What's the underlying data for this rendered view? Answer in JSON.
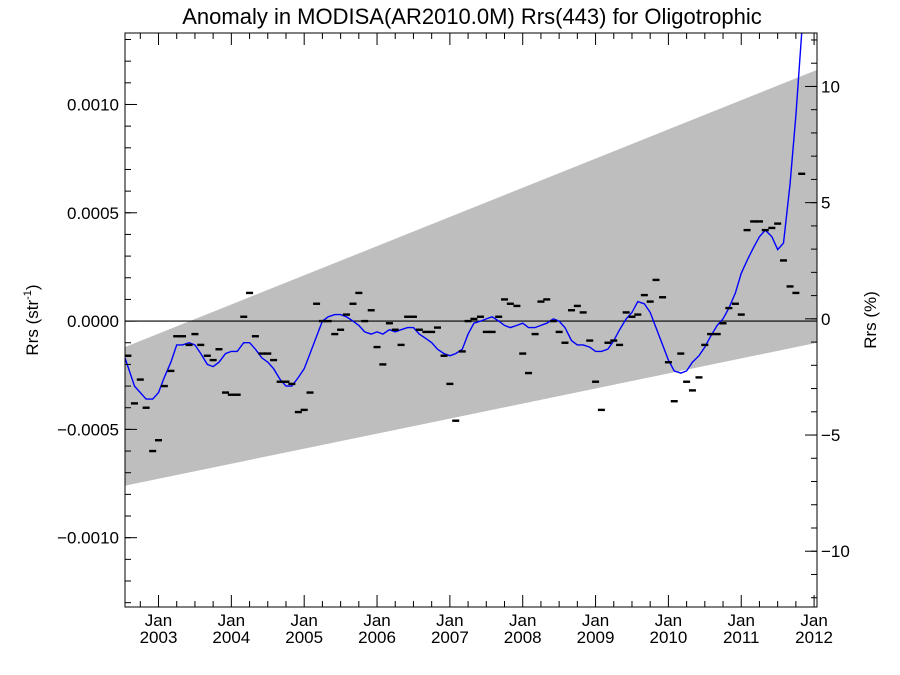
{
  "chart_data": {
    "type": "line",
    "title": "Anomaly in MODISA(AR2010.0M) Rrs(443) for Oligotrophic",
    "ylabel": "Rrs (str",
    "ylabel_sup": "-1",
    "ylabel_close": ")",
    "y2label": "Rrs (%)",
    "ylim": [
      -0.00132,
      0.00133
    ],
    "y2lim": [
      -12.4,
      12.3
    ],
    "xlim": [
      2002.54,
      2012.04
    ],
    "yticks": [
      {
        "value": 0.001,
        "label": "0.0010"
      },
      {
        "value": 0.0005,
        "label": "0.0005"
      },
      {
        "value": 0.0,
        "label": "0.0000"
      },
      {
        "value": -0.0005,
        "label": "−0.0005"
      },
      {
        "value": -0.001,
        "label": "−0.0010"
      }
    ],
    "y2ticks": [
      {
        "value": 10,
        "label": "10"
      },
      {
        "value": 5,
        "label": "5"
      },
      {
        "value": 0,
        "label": "0"
      },
      {
        "value": -5,
        "label": "−5"
      },
      {
        "value": -10,
        "label": "−10"
      }
    ],
    "xticks": [
      {
        "value": 2003.0,
        "month": "Jan",
        "year": "2003"
      },
      {
        "value": 2004.0,
        "month": "Jan",
        "year": "2004"
      },
      {
        "value": 2005.0,
        "month": "Jan",
        "year": "2005"
      },
      {
        "value": 2006.0,
        "month": "Jan",
        "year": "2006"
      },
      {
        "value": 2007.0,
        "month": "Jan",
        "year": "2007"
      },
      {
        "value": 2008.0,
        "month": "Jan",
        "year": "2008"
      },
      {
        "value": 2009.0,
        "month": "Jan",
        "year": "2009"
      },
      {
        "value": 2010.0,
        "month": "Jan",
        "year": "2010"
      },
      {
        "value": 2011.0,
        "month": "Jan",
        "year": "2011"
      },
      {
        "value": 2012.0,
        "month": "Jan",
        "year": "2012"
      }
    ],
    "grey_band": {
      "upper": [
        [
          2002.54,
          -0.00012
        ],
        [
          2012.04,
          0.00116
        ]
      ],
      "lower": [
        [
          2002.54,
          -0.00076
        ],
        [
          2012.04,
          -0.0001
        ]
      ],
      "color": "#bebebe"
    },
    "zero_line": 0,
    "series": [
      {
        "kind": "markers",
        "color": "#000000",
        "points": [
          [
            2002.58,
            -0.00016
          ],
          [
            2002.67,
            -0.00038
          ],
          [
            2002.75,
            -0.00027
          ],
          [
            2002.83,
            -0.0004
          ],
          [
            2002.92,
            -0.0006
          ],
          [
            2003.0,
            -0.00055
          ],
          [
            2003.08,
            -0.0003
          ],
          [
            2003.17,
            -0.00023
          ],
          [
            2003.25,
            -7e-05
          ],
          [
            2003.33,
            -7e-05
          ],
          [
            2003.42,
            -0.00011
          ],
          [
            2003.5,
            -6e-05
          ],
          [
            2003.58,
            -0.00011
          ],
          [
            2003.67,
            -0.00016
          ],
          [
            2003.75,
            -0.00018
          ],
          [
            2003.83,
            -0.00013
          ],
          [
            2003.92,
            -0.00033
          ],
          [
            2004.0,
            -0.00034
          ],
          [
            2004.08,
            -0.00034
          ],
          [
            2004.17,
            2e-05
          ],
          [
            2004.25,
            0.00013
          ],
          [
            2004.33,
            -7e-05
          ],
          [
            2004.42,
            -0.00015
          ],
          [
            2004.5,
            -0.00015
          ],
          [
            2004.58,
            -0.00018
          ],
          [
            2004.67,
            -0.00028
          ],
          [
            2004.75,
            -0.00028
          ],
          [
            2004.83,
            -0.00029
          ],
          [
            2004.92,
            -0.00042
          ],
          [
            2005.0,
            -0.00041
          ],
          [
            2005.08,
            -0.00033
          ],
          [
            2005.17,
            8e-05
          ],
          [
            2005.25,
            0.0
          ],
          [
            2005.33,
            0.0
          ],
          [
            2005.42,
            -6e-05
          ],
          [
            2005.5,
            -4e-05
          ],
          [
            2005.58,
            3e-05
          ],
          [
            2005.67,
            8e-05
          ],
          [
            2005.75,
            0.00013
          ],
          [
            2005.83,
            0.0
          ],
          [
            2005.92,
            5e-05
          ],
          [
            2006.0,
            -0.00012
          ],
          [
            2006.08,
            -0.0002
          ],
          [
            2006.17,
            -1e-05
          ],
          [
            2006.25,
            -4e-05
          ],
          [
            2006.33,
            -0.00011
          ],
          [
            2006.42,
            2e-05
          ],
          [
            2006.5,
            2e-05
          ],
          [
            2006.58,
            -4e-05
          ],
          [
            2006.67,
            -5e-05
          ],
          [
            2006.75,
            -5e-05
          ],
          [
            2006.83,
            -3e-05
          ],
          [
            2006.92,
            -0.00016
          ],
          [
            2007.0,
            -0.00029
          ],
          [
            2007.08,
            -0.00046
          ],
          [
            2007.17,
            -0.00014
          ],
          [
            2007.25,
            0.0
          ],
          [
            2007.33,
            1e-05
          ],
          [
            2007.42,
            2e-05
          ],
          [
            2007.5,
            -5e-05
          ],
          [
            2007.58,
            -5e-05
          ],
          [
            2007.67,
            2e-05
          ],
          [
            2007.75,
            0.0001
          ],
          [
            2007.83,
            8e-05
          ],
          [
            2007.92,
            7e-05
          ],
          [
            2008.0,
            -0.00015
          ],
          [
            2008.08,
            -0.00024
          ],
          [
            2008.17,
            -6e-05
          ],
          [
            2008.25,
            9e-05
          ],
          [
            2008.33,
            0.0001
          ],
          [
            2008.42,
            0.0
          ],
          [
            2008.5,
            -5e-05
          ],
          [
            2008.58,
            -0.0001
          ],
          [
            2008.67,
            5e-05
          ],
          [
            2008.75,
            7e-05
          ],
          [
            2008.83,
            4e-05
          ],
          [
            2008.92,
            -9e-05
          ],
          [
            2009.0,
            -0.00028
          ],
          [
            2009.08,
            -0.00041
          ],
          [
            2009.17,
            -0.0001
          ],
          [
            2009.25,
            -9e-05
          ],
          [
            2009.33,
            -0.00011
          ],
          [
            2009.42,
            4e-05
          ],
          [
            2009.5,
            2e-05
          ],
          [
            2009.58,
            3e-05
          ],
          [
            2009.67,
            0.00012
          ],
          [
            2009.75,
            9e-05
          ],
          [
            2009.83,
            0.00019
          ],
          [
            2009.92,
            0.00011
          ],
          [
            2010.0,
            -0.00019
          ],
          [
            2010.08,
            -0.00037
          ],
          [
            2010.17,
            -0.00015
          ],
          [
            2010.25,
            -0.00028
          ],
          [
            2010.33,
            -0.00032
          ],
          [
            2010.42,
            -0.00026
          ],
          [
            2010.5,
            -0.00011
          ],
          [
            2010.58,
            -6e-05
          ],
          [
            2010.67,
            -6e-05
          ],
          [
            2010.75,
            -1e-05
          ],
          [
            2010.83,
            6e-05
          ],
          [
            2010.92,
            8e-05
          ],
          [
            2011.0,
            3e-05
          ],
          [
            2011.08,
            0.00042
          ],
          [
            2011.17,
            0.00046
          ],
          [
            2011.25,
            0.00046
          ],
          [
            2011.33,
            0.00042
          ],
          [
            2011.42,
            0.00043
          ],
          [
            2011.5,
            0.00045
          ],
          [
            2011.58,
            0.00028
          ],
          [
            2011.67,
            0.00016
          ],
          [
            2011.75,
            0.00013
          ],
          [
            2011.83,
            0.00068
          ]
        ]
      },
      {
        "kind": "line",
        "color": "#0000ff",
        "points": [
          [
            2002.54,
            -0.00017
          ],
          [
            2002.67,
            -0.0003
          ],
          [
            2002.83,
            -0.00036
          ],
          [
            2002.92,
            -0.00036
          ],
          [
            2003.0,
            -0.00033
          ],
          [
            2003.08,
            -0.00026
          ],
          [
            2003.17,
            -0.00019
          ],
          [
            2003.25,
            -0.00011
          ],
          [
            2003.33,
            -0.00011
          ],
          [
            2003.42,
            -0.0001
          ],
          [
            2003.5,
            -0.00011
          ],
          [
            2003.58,
            -0.00015
          ],
          [
            2003.67,
            -0.0002
          ],
          [
            2003.75,
            -0.00021
          ],
          [
            2003.83,
            -0.00019
          ],
          [
            2003.92,
            -0.00015
          ],
          [
            2004.0,
            -0.00014
          ],
          [
            2004.08,
            -0.00014
          ],
          [
            2004.17,
            -0.0001
          ],
          [
            2004.25,
            -0.0001
          ],
          [
            2004.33,
            -0.00013
          ],
          [
            2004.42,
            -0.00017
          ],
          [
            2004.5,
            -0.00019
          ],
          [
            2004.58,
            -0.00022
          ],
          [
            2004.67,
            -0.00027
          ],
          [
            2004.75,
            -0.0003
          ],
          [
            2004.83,
            -0.0003
          ],
          [
            2004.92,
            -0.00026
          ],
          [
            2005.0,
            -0.00022
          ],
          [
            2005.08,
            -0.00015
          ],
          [
            2005.17,
            -7e-05
          ],
          [
            2005.25,
            0.0
          ],
          [
            2005.33,
            2e-05
          ],
          [
            2005.42,
            3e-05
          ],
          [
            2005.5,
            3e-05
          ],
          [
            2005.58,
            2e-05
          ],
          [
            2005.67,
            0.0
          ],
          [
            2005.75,
            -2e-05
          ],
          [
            2005.83,
            -5e-05
          ],
          [
            2005.92,
            -6e-05
          ],
          [
            2006.0,
            -5e-05
          ],
          [
            2006.08,
            -6e-05
          ],
          [
            2006.17,
            -4e-05
          ],
          [
            2006.25,
            -5e-05
          ],
          [
            2006.33,
            -4e-05
          ],
          [
            2006.42,
            -3e-05
          ],
          [
            2006.5,
            -3e-05
          ],
          [
            2006.58,
            -6e-05
          ],
          [
            2006.67,
            -8e-05
          ],
          [
            2006.75,
            -0.0001
          ],
          [
            2006.83,
            -0.00013
          ],
          [
            2006.92,
            -0.00015
          ],
          [
            2007.0,
            -0.00016
          ],
          [
            2007.08,
            -0.00015
          ],
          [
            2007.17,
            -0.00013
          ],
          [
            2007.25,
            -6e-05
          ],
          [
            2007.33,
            -1e-05
          ],
          [
            2007.42,
            0.0
          ],
          [
            2007.5,
            1e-05
          ],
          [
            2007.58,
            2e-05
          ],
          [
            2007.67,
            0.0
          ],
          [
            2007.75,
            -2e-05
          ],
          [
            2007.83,
            -3e-05
          ],
          [
            2007.92,
            -2e-05
          ],
          [
            2008.0,
            -1e-05
          ],
          [
            2008.08,
            -3e-05
          ],
          [
            2008.17,
            -3e-05
          ],
          [
            2008.25,
            -2e-05
          ],
          [
            2008.33,
            -1e-05
          ],
          [
            2008.42,
            1e-05
          ],
          [
            2008.5,
            0.0
          ],
          [
            2008.58,
            -3e-05
          ],
          [
            2008.67,
            -9e-05
          ],
          [
            2008.75,
            -0.00011
          ],
          [
            2008.83,
            -0.00011
          ],
          [
            2008.92,
            -0.00012
          ],
          [
            2009.0,
            -0.00014
          ],
          [
            2009.08,
            -0.00014
          ],
          [
            2009.17,
            -0.00013
          ],
          [
            2009.25,
            -9e-05
          ],
          [
            2009.33,
            -4e-05
          ],
          [
            2009.42,
            1e-05
          ],
          [
            2009.5,
            4e-05
          ],
          [
            2009.58,
            9e-05
          ],
          [
            2009.67,
            8e-05
          ],
          [
            2009.75,
            4e-05
          ],
          [
            2009.83,
            -3e-05
          ],
          [
            2009.92,
            -0.00011
          ],
          [
            2010.0,
            -0.00018
          ],
          [
            2010.08,
            -0.00023
          ],
          [
            2010.17,
            -0.00024
          ],
          [
            2010.25,
            -0.00023
          ],
          [
            2010.33,
            -0.00019
          ],
          [
            2010.42,
            -0.00016
          ],
          [
            2010.5,
            -0.00012
          ],
          [
            2010.58,
            -7e-05
          ],
          [
            2010.67,
            -2e-05
          ],
          [
            2010.75,
            1e-05
          ],
          [
            2010.83,
            6e-05
          ],
          [
            2010.92,
            0.00013
          ],
          [
            2011.0,
            0.00022
          ],
          [
            2011.08,
            0.00028
          ],
          [
            2011.17,
            0.00034
          ],
          [
            2011.25,
            0.00039
          ],
          [
            2011.33,
            0.00042
          ],
          [
            2011.42,
            0.00039
          ],
          [
            2011.5,
            0.00033
          ],
          [
            2011.58,
            0.00036
          ],
          [
            2011.67,
            0.00063
          ],
          [
            2011.75,
            0.00095
          ],
          [
            2011.83,
            0.00133
          ]
        ]
      }
    ]
  }
}
